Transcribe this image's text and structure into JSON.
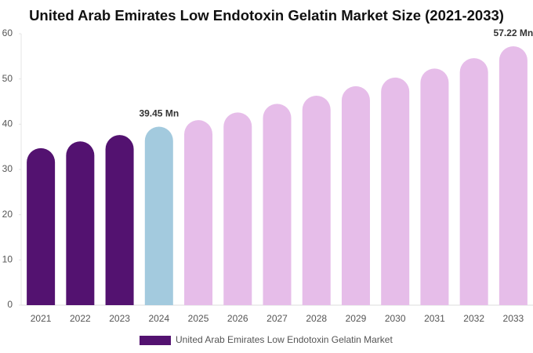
{
  "chart_data": {
    "type": "bar",
    "title": "United Arab Emirates Low Endotoxin Gelatin Market Size (2021-2033)",
    "categories": [
      "2021",
      "2022",
      "2023",
      "2024",
      "2025",
      "2026",
      "2027",
      "2028",
      "2029",
      "2030",
      "2031",
      "2032",
      "2033"
    ],
    "series": [
      {
        "name": "United Arab Emirates Low Endotoxin Gelatin Market",
        "color": "#531270",
        "values": [
          34.7,
          36.2,
          37.6,
          39.45,
          40.9,
          42.6,
          44.5,
          46.3,
          48.4,
          50.3,
          52.3,
          54.6,
          57.22
        ],
        "value_labels": [
          null,
          null,
          null,
          "39.45 Mn",
          null,
          null,
          null,
          null,
          null,
          null,
          null,
          null,
          "57.22 Mn"
        ]
      }
    ],
    "bar_colors": [
      "#531270",
      "#531270",
      "#531270",
      "#a3cade",
      "#e6bde9",
      "#e6bde9",
      "#e6bde9",
      "#e6bde9",
      "#e6bde9",
      "#e6bde9",
      "#e6bde9",
      "#e6bde9",
      "#e6bde9"
    ],
    "ylim": [
      0,
      60
    ],
    "yticks": [
      0,
      10,
      20,
      30,
      40,
      50,
      60
    ],
    "grid": false
  }
}
